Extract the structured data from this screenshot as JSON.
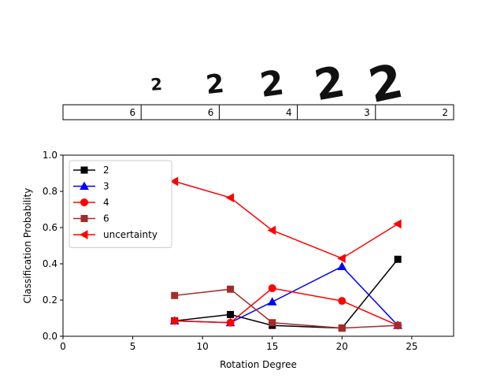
{
  "digit_strip": {
    "glyph": "2",
    "predictions": [
      "6",
      "6",
      "4",
      "3",
      "2"
    ],
    "image_scales": [
      0.35,
      0.55,
      0.72,
      0.9,
      1.0
    ]
  },
  "chart_data": {
    "type": "line",
    "title": "",
    "xlabel": "Rotation Degree",
    "ylabel": "Classification Probability",
    "xlim": [
      0,
      28
    ],
    "ylim": [
      0,
      1.0
    ],
    "xticks": [
      0,
      5,
      10,
      15,
      20,
      25
    ],
    "yticks": [
      0.0,
      0.2,
      0.4,
      0.6,
      0.8,
      1.0
    ],
    "ytick_labels": [
      "0.0",
      "0.2",
      "0.4",
      "0.6",
      "0.8",
      "1.0"
    ],
    "grid": false,
    "legend_position": "top-left",
    "x": [
      8,
      12,
      15,
      20,
      24
    ],
    "series": [
      {
        "name": "2",
        "color": "#000000",
        "marker": "square",
        "values": [
          0.085,
          0.12,
          0.06,
          0.045,
          0.425
        ]
      },
      {
        "name": "3",
        "color": "#0000ff",
        "marker": "triangle-up",
        "values": [
          0.085,
          0.075,
          0.19,
          0.385,
          0.06
        ]
      },
      {
        "name": "4",
        "color": "#ff0000",
        "marker": "circle",
        "values": [
          0.085,
          0.075,
          0.265,
          0.195,
          0.06
        ]
      },
      {
        "name": "6",
        "color": "#a52a2a",
        "marker": "square",
        "values": [
          0.225,
          0.26,
          0.075,
          0.045,
          0.06
        ]
      },
      {
        "name": "uncertainty",
        "color": "#ff0000",
        "marker": "triangle-left",
        "values": [
          0.855,
          0.765,
          0.585,
          0.43,
          0.62
        ]
      }
    ]
  }
}
